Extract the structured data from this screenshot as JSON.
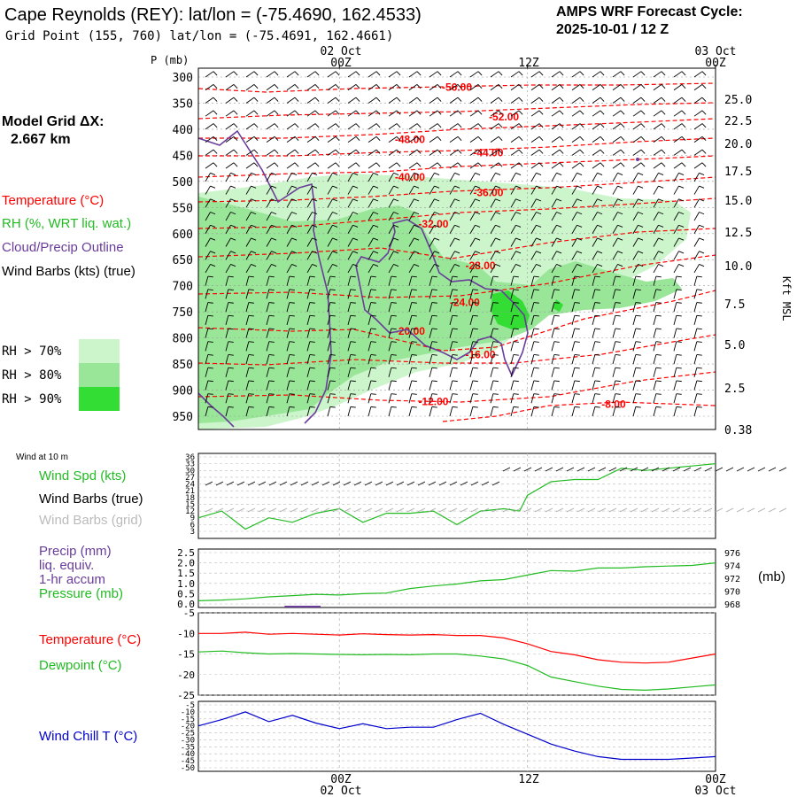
{
  "header": {
    "title": "Cape Reynolds (REY):  lat/lon = (-75.4690, 162.4533)",
    "grid_point": "Grid Point (155, 760) lat/lon = (-75.4691, 162.4661)",
    "forecast_line1": "AMPS WRF Forecast Cycle:",
    "forecast_line2": "2025-10-01 / 12  Z",
    "model_grid_line1": "Model Grid ΔX:",
    "model_grid_line2": "2.667 km"
  },
  "time_axis": {
    "top_dates": [
      "02 Oct",
      "03 Oct"
    ],
    "times": [
      "00Z",
      "12Z",
      "00Z"
    ],
    "bottom_dates": [
      "02 Oct",
      "03 Oct"
    ]
  },
  "legend": {
    "temperature": "Temperature (°C)",
    "rh": "RH (%, WRT liq. wat.)",
    "cloud": "Cloud/Precip Outline",
    "barbs": "Wind Barbs (kts) (true)",
    "rh70": "RH > 70%",
    "rh80": "RH > 80%",
    "rh90": "RH > 90%",
    "wind_title": "Wind at 10 m",
    "wind_spd": "Wind Spd (kts)",
    "barbs_true": "Wind Barbs (true)",
    "barbs_grid": "Wind Barbs (grid)",
    "precip1": "Precip (mm)",
    "precip2": "liq. equiv.",
    "precip3": "1-hr accum",
    "pressure": "Pressure (mb)",
    "pressure_unit": "(mb)",
    "temp": "Temperature (°C)",
    "dew": "Dewpoint (°C)",
    "chill": "Wind Chill T (°C)"
  },
  "colors": {
    "temperature": "#ff0000",
    "rh70": "#ccf5cc",
    "rh80": "#99e699",
    "rh90": "#33dd33",
    "cloud": "#6a3d9a",
    "wind": "#22bb22",
    "chill": "#0000cc"
  },
  "chart_data": [
    {
      "type": "area",
      "title": "Cross-section",
      "ylabel": "P (mb)",
      "y2label": "Kft MSL",
      "y_ticks": [
        "300",
        "350",
        "400",
        "450",
        "500",
        "550",
        "600",
        "650",
        "700",
        "750",
        "800",
        "850",
        "900",
        "950"
      ],
      "y2_ticks": [
        "25.0",
        "22.5",
        "20.0",
        "17.5",
        "15.0",
        "12.5",
        "10.0",
        "7.5",
        "5.0",
        "2.5",
        "0.38"
      ],
      "temperature_labels": [
        {
          "label": "-56.00",
          "hour": 7.5,
          "p": 318
        },
        {
          "label": "-52.00",
          "hour": 10.5,
          "p": 375
        },
        {
          "label": "-48.00",
          "hour": 4.5,
          "p": 418
        },
        {
          "label": "-44.00",
          "hour": 9.5,
          "p": 443
        },
        {
          "label": "-40.00",
          "hour": 4.5,
          "p": 490
        },
        {
          "label": "-36.00",
          "hour": 9.5,
          "p": 520
        },
        {
          "label": "-32.00",
          "hour": 6.0,
          "p": 580
        },
        {
          "label": "-28.00",
          "hour": 9.0,
          "p": 660
        },
        {
          "label": "-24.00",
          "hour": 8.0,
          "p": 730
        },
        {
          "label": "-20.00",
          "hour": 4.5,
          "p": 785
        },
        {
          "label": "-16.00",
          "hour": 9.0,
          "p": 830
        },
        {
          "label": "-12.00",
          "hour": 6.0,
          "p": 920
        },
        {
          "label": "-8.00",
          "hour": 17.5,
          "p": 925
        }
      ]
    },
    {
      "type": "line",
      "title": "Wind Spd (kts)",
      "x_hours": [
        -9,
        -7.5,
        -6,
        -4.5,
        -3,
        -1.5,
        0,
        1.5,
        3,
        4.5,
        6,
        7.5,
        9,
        10.5,
        11.5,
        12,
        13.5,
        15,
        16.5,
        18,
        19.5,
        21,
        22.5,
        24
      ],
      "wind_speed": [
        9,
        12,
        4,
        9,
        7,
        11,
        13,
        7,
        11,
        11,
        12,
        6,
        12,
        13,
        12,
        19,
        25,
        26,
        26,
        31,
        30,
        31,
        32,
        33
      ],
      "y_ticks": [
        "36",
        "33",
        "30",
        "27",
        "24",
        "21",
        "18",
        "15",
        "12",
        "9",
        "6",
        "3"
      ]
    },
    {
      "type": "line",
      "title": "Precip / Pressure",
      "x_hours": [
        -9,
        -7.5,
        -6,
        -4.5,
        -3,
        -1.5,
        0,
        1.5,
        3,
        4.5,
        6,
        7.5,
        9,
        10.5,
        12,
        13.5,
        15,
        16.5,
        18,
        19.5,
        21,
        22.5,
        24
      ],
      "pressure_mb": [
        968.5,
        968.6,
        968.8,
        969.1,
        969.3,
        969.5,
        969.4,
        969.6,
        969.7,
        970.4,
        970.8,
        971.1,
        971.6,
        971.8,
        972.5,
        973.2,
        973.1,
        973.6,
        973.6,
        973.8,
        973.9,
        974.0,
        974.4
      ],
      "precip_mm": [
        0,
        0,
        0,
        0,
        0.05,
        0.05,
        0,
        0,
        0,
        0,
        0,
        0,
        0,
        0,
        0,
        0,
        0,
        0,
        0,
        0,
        0,
        0,
        0
      ],
      "y_ticks": [
        "2.5",
        "2.0",
        "1.5",
        "1.0",
        "0.5",
        "0.0"
      ],
      "y2_ticks": [
        "976",
        "974",
        "972",
        "970",
        "968"
      ]
    },
    {
      "type": "line",
      "title": "Temperature / Dewpoint",
      "x_hours": [
        -9,
        -7.5,
        -6,
        -4.5,
        -3,
        -1.5,
        0,
        1.5,
        3,
        4.5,
        6,
        7.5,
        9,
        10.5,
        12,
        13.5,
        15,
        16.5,
        18,
        19.5,
        21,
        22.5,
        24
      ],
      "temperature": [
        -10,
        -10,
        -9.7,
        -10.2,
        -10,
        -10.2,
        -10.4,
        -10.1,
        -10.3,
        -10.4,
        -10.3,
        -10.5,
        -10.5,
        -11.1,
        -12.5,
        -14.4,
        -15.2,
        -16.4,
        -17.0,
        -17.2,
        -17.0,
        -16.0,
        -15.0
      ],
      "dewpoint": [
        -14.5,
        -14.3,
        -14.7,
        -15,
        -14.9,
        -15,
        -15.1,
        -15.2,
        -15.1,
        -15.2,
        -15.0,
        -15.0,
        -15.5,
        -16.2,
        -17.8,
        -20.6,
        -21.7,
        -22.8,
        -23.6,
        -23.8,
        -23.5,
        -23.0,
        -22.5
      ],
      "y_ticks": [
        "-5",
        "-10",
        "-15",
        "-20",
        "-25"
      ]
    },
    {
      "type": "line",
      "title": "Wind Chill T",
      "x_hours": [
        -9,
        -7.5,
        -6,
        -4.5,
        -3,
        -1.5,
        0,
        1.5,
        3,
        4.5,
        6,
        7.5,
        9,
        10.5,
        12,
        13.5,
        15,
        16.5,
        18,
        19.5,
        21,
        22.5,
        24
      ],
      "wind_chill": [
        -20,
        -15.5,
        -10,
        -17,
        -12.5,
        -18,
        -22,
        -18.5,
        -22,
        -21,
        -21,
        -15.5,
        -11,
        -19,
        -26,
        -33,
        -38,
        -42,
        -44,
        -44,
        -44,
        -43,
        -42
      ],
      "y_ticks": [
        "-5",
        "-10",
        "-15",
        "-20",
        "-25",
        "-30",
        "-35",
        "-40",
        "-45",
        "-50"
      ]
    }
  ]
}
